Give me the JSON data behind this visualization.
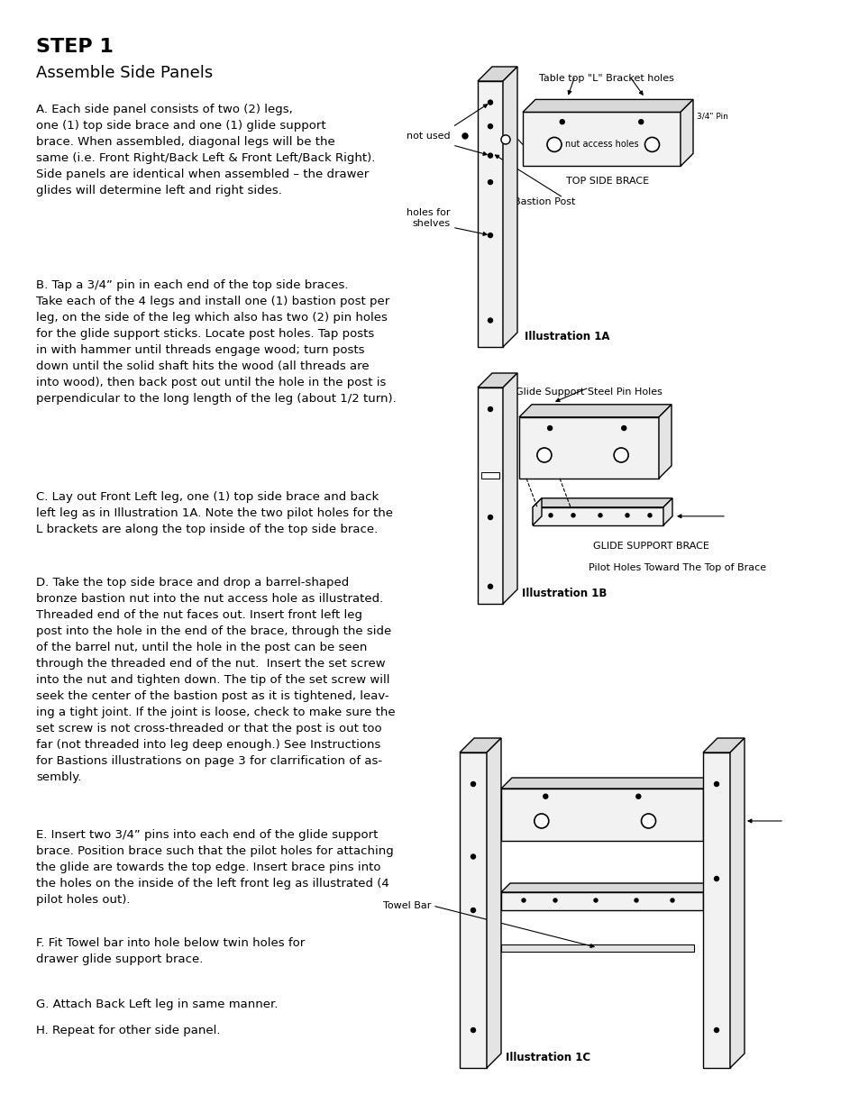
{
  "title": "STEP 1",
  "subtitle": "Assemble Side Panels",
  "background_color": "#ffffff",
  "text_color": "#000000",
  "para_A": "A. Each side panel consists of two (2) legs,\none (1) top side brace and one (1) glide support\nbrace. When assembled, diagonal legs will be the\nsame (i.e. Front Right/Back Left & Front Left/Back Right).\nSide panels are identical when assembled – the drawer\nglides will determine left and right sides.",
  "para_B": "B. Tap a 3/4” pin in each end of the top side braces.\nTake each of the 4 legs and install one (1) bastion post per\nleg, on the side of the leg which also has two (2) pin holes\nfor the glide support sticks. Locate post holes. Tap posts\nin with hammer until threads engage wood; turn posts\ndown until the solid shaft hits the wood (all threads are\ninto wood), then back post out until the hole in the post is\nperpendicular to the long length of the leg (about 1/2 turn).",
  "para_C": "C. Lay out Front Left leg, one (1) top side brace and back\nleft leg as in Illustration 1A. Note the two pilot holes for the\nL brackets are along the top inside of the top side brace.",
  "para_D": "D. Take the top side brace and drop a barrel-shaped\nbronze bastion nut into the nut access hole as illustrated.\nThreaded end of the nut faces out. Insert front left leg\npost into the hole in the end of the brace, through the side\nof the barrel nut, until the hole in the post can be seen\nthrough the threaded end of the nut.  Insert the set screw\ninto the nut and tighten down. The tip of the set screw will\nseek the center of the bastion post as it is tightened, leav-\ning a tight joint. If the joint is loose, check to make sure the\nset screw is not cross-threaded or that the post is out too\nfar (not threaded into leg deep enough.) See Instructions\nfor Bastions illustrations on page 3 for clarrification of as-\nsembly.",
  "para_E": "E. Insert two 3/4” pins into each end of the glide support\nbrace. Position brace such that the pilot holes for attaching\nthe glide are towards the top edge. Insert brace pins into\nthe holes on the inside of the left front leg as illustrated (4\npilot holes out).",
  "para_F": "F. Fit Towel bar into hole below twin holes for\ndrawer glide support brace.",
  "para_G": "G. Attach Back Left leg in same manner.",
  "para_H": "H. Repeat for other side panel.",
  "fig_width": 9.54,
  "fig_height": 12.35
}
